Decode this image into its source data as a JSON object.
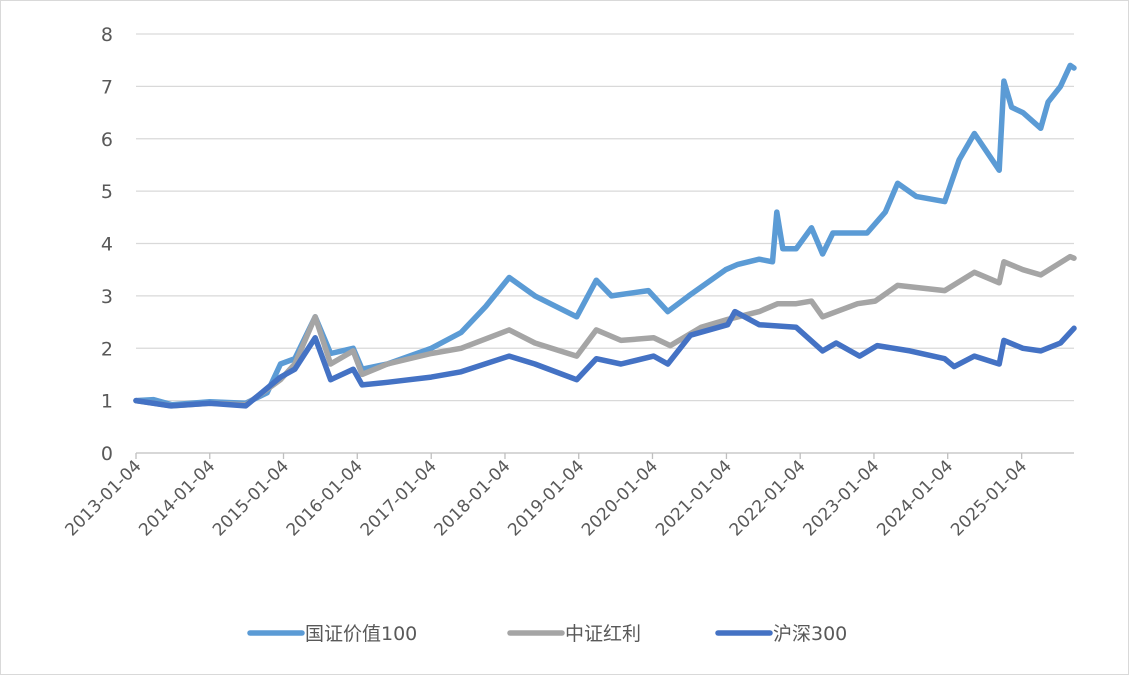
{
  "chart_data": {
    "type": "line",
    "title": "",
    "xlabel": "",
    "ylabel": "",
    "ylim": [
      0,
      8
    ],
    "yticks": [
      "0",
      "1",
      "2",
      "3",
      "4",
      "5",
      "6",
      "7",
      "8"
    ],
    "xlim": [
      "2013-01-04",
      "2025-09-20"
    ],
    "xticks": [
      "2013-01-04",
      "2014-01-04",
      "2015-01-04",
      "2016-01-04",
      "2017-01-04",
      "2018-01-04",
      "2019-01-04",
      "2020-01-04",
      "2021-01-04",
      "2022-01-04",
      "2023-01-04",
      "2024-01-04",
      "2025-01-04"
    ],
    "grid": "horizontal",
    "legend_position": "bottom",
    "series": [
      {
        "name": "国证价值100",
        "color": "#5b9bd5",
        "points": [
          [
            "2013-01-04",
            1.0
          ],
          [
            "2013-04-01",
            1.02
          ],
          [
            "2013-07-01",
            0.92
          ],
          [
            "2014-01-04",
            0.98
          ],
          [
            "2014-07-01",
            0.95
          ],
          [
            "2014-10-15",
            1.15
          ],
          [
            "2014-12-20",
            1.7
          ],
          [
            "2015-03-01",
            1.8
          ],
          [
            "2015-06-10",
            2.6
          ],
          [
            "2015-08-25",
            1.9
          ],
          [
            "2015-12-15",
            2.0
          ],
          [
            "2016-01-28",
            1.6
          ],
          [
            "2016-06-01",
            1.7
          ],
          [
            "2017-01-04",
            2.0
          ],
          [
            "2017-06-01",
            2.3
          ],
          [
            "2017-10-01",
            2.8
          ],
          [
            "2018-01-25",
            3.35
          ],
          [
            "2018-06-01",
            3.0
          ],
          [
            "2018-12-25",
            2.6
          ],
          [
            "2019-04-01",
            3.3
          ],
          [
            "2019-06-15",
            3.0
          ],
          [
            "2019-12-15",
            3.1
          ],
          [
            "2020-03-20",
            2.7
          ],
          [
            "2020-07-01",
            3.0
          ],
          [
            "2020-12-31",
            3.5
          ],
          [
            "2021-03-01",
            3.6
          ],
          [
            "2021-06-15",
            3.7
          ],
          [
            "2021-08-20",
            3.65
          ],
          [
            "2021-09-10",
            4.6
          ],
          [
            "2021-10-10",
            3.9
          ],
          [
            "2021-12-15",
            3.9
          ],
          [
            "2022-03-01",
            4.3
          ],
          [
            "2022-04-25",
            3.8
          ],
          [
            "2022-06-15",
            4.2
          ],
          [
            "2022-12-01",
            4.2
          ],
          [
            "2023-03-01",
            4.6
          ],
          [
            "2023-05-01",
            5.15
          ],
          [
            "2023-08-01",
            4.9
          ],
          [
            "2023-12-20",
            4.8
          ],
          [
            "2024-03-01",
            5.6
          ],
          [
            "2024-05-15",
            6.1
          ],
          [
            "2024-09-15",
            5.4
          ],
          [
            "2024-10-08",
            7.1
          ],
          [
            "2024-11-15",
            6.6
          ],
          [
            "2025-01-10",
            6.5
          ],
          [
            "2025-04-08",
            6.2
          ],
          [
            "2025-05-15",
            6.7
          ],
          [
            "2025-07-15",
            7.0
          ],
          [
            "2025-09-01",
            7.4
          ],
          [
            "2025-09-20",
            7.35
          ]
        ]
      },
      {
        "name": "中证红利",
        "color": "#a5a5a5",
        "points": [
          [
            "2013-01-04",
            1.0
          ],
          [
            "2013-07-01",
            0.9
          ],
          [
            "2014-01-04",
            0.95
          ],
          [
            "2014-07-01",
            0.92
          ],
          [
            "2014-12-20",
            1.4
          ],
          [
            "2015-03-01",
            1.7
          ],
          [
            "2015-06-10",
            2.6
          ],
          [
            "2015-08-25",
            1.7
          ],
          [
            "2015-12-15",
            1.95
          ],
          [
            "2016-01-28",
            1.5
          ],
          [
            "2016-06-01",
            1.7
          ],
          [
            "2017-01-04",
            1.9
          ],
          [
            "2017-06-01",
            2.0
          ],
          [
            "2018-01-25",
            2.35
          ],
          [
            "2018-06-01",
            2.1
          ],
          [
            "2018-12-25",
            1.85
          ],
          [
            "2019-04-01",
            2.35
          ],
          [
            "2019-08-01",
            2.15
          ],
          [
            "2020-01-10",
            2.2
          ],
          [
            "2020-04-01",
            2.05
          ],
          [
            "2020-09-01",
            2.4
          ],
          [
            "2021-01-10",
            2.55
          ],
          [
            "2021-06-15",
            2.7
          ],
          [
            "2021-09-15",
            2.85
          ],
          [
            "2021-12-15",
            2.85
          ],
          [
            "2022-03-01",
            2.9
          ],
          [
            "2022-04-25",
            2.6
          ],
          [
            "2022-10-15",
            2.85
          ],
          [
            "2023-01-10",
            2.9
          ],
          [
            "2023-05-01",
            3.2
          ],
          [
            "2023-12-20",
            3.1
          ],
          [
            "2024-05-15",
            3.45
          ],
          [
            "2024-09-15",
            3.25
          ],
          [
            "2024-10-08",
            3.65
          ],
          [
            "2025-01-10",
            3.5
          ],
          [
            "2025-04-08",
            3.4
          ],
          [
            "2025-09-01",
            3.75
          ],
          [
            "2025-09-20",
            3.72
          ]
        ]
      },
      {
        "name": "沪深300",
        "color": "#4472c4",
        "points": [
          [
            "2013-01-04",
            1.0
          ],
          [
            "2013-06-25",
            0.9
          ],
          [
            "2014-01-04",
            0.95
          ],
          [
            "2014-07-01",
            0.9
          ],
          [
            "2014-12-20",
            1.45
          ],
          [
            "2015-03-01",
            1.6
          ],
          [
            "2015-06-10",
            2.2
          ],
          [
            "2015-08-25",
            1.4
          ],
          [
            "2015-12-15",
            1.6
          ],
          [
            "2016-01-28",
            1.3
          ],
          [
            "2016-06-01",
            1.35
          ],
          [
            "2017-01-04",
            1.45
          ],
          [
            "2017-06-01",
            1.55
          ],
          [
            "2018-01-25",
            1.85
          ],
          [
            "2018-06-01",
            1.7
          ],
          [
            "2018-12-25",
            1.4
          ],
          [
            "2019-04-01",
            1.8
          ],
          [
            "2019-08-01",
            1.7
          ],
          [
            "2020-01-10",
            1.85
          ],
          [
            "2020-03-20",
            1.7
          ],
          [
            "2020-07-10",
            2.25
          ],
          [
            "2021-01-10",
            2.45
          ],
          [
            "2021-02-15",
            2.7
          ],
          [
            "2021-06-15",
            2.45
          ],
          [
            "2021-12-15",
            2.4
          ],
          [
            "2022-04-25",
            1.95
          ],
          [
            "2022-07-01",
            2.1
          ],
          [
            "2022-10-25",
            1.85
          ],
          [
            "2023-01-20",
            2.05
          ],
          [
            "2023-07-01",
            1.95
          ],
          [
            "2023-12-20",
            1.8
          ],
          [
            "2024-02-05",
            1.65
          ],
          [
            "2024-05-15",
            1.85
          ],
          [
            "2024-09-15",
            1.7
          ],
          [
            "2024-10-08",
            2.15
          ],
          [
            "2025-01-10",
            2.0
          ],
          [
            "2025-04-08",
            1.95
          ],
          [
            "2025-07-15",
            2.1
          ],
          [
            "2025-09-20",
            2.38
          ]
        ]
      }
    ]
  }
}
